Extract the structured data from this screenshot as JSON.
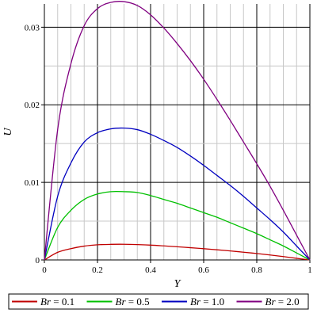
{
  "chart_data": {
    "type": "line",
    "xlabel": "Y",
    "ylabel": "U",
    "xlim": [
      0,
      1
    ],
    "ylim": [
      0,
      0.033
    ],
    "xticks": [
      0,
      0.2,
      0.4,
      0.6,
      0.8,
      1
    ],
    "xtick_labels": [
      "0",
      "0.2",
      "0.4",
      "0.6",
      "0.8",
      "1"
    ],
    "yticks": [
      0,
      0.01,
      0.02,
      0.03
    ],
    "ytick_labels": [
      "0",
      "0.01",
      "0.02",
      "0.03"
    ],
    "grid": true,
    "legend_position": "bottom",
    "x": [
      0,
      0.05,
      0.1,
      0.15,
      0.2,
      0.25,
      0.3,
      0.35,
      0.4,
      0.45,
      0.5,
      0.55,
      0.6,
      0.65,
      0.7,
      0.75,
      0.8,
      0.85,
      0.9,
      0.95,
      1.0
    ],
    "series": [
      {
        "name_var": "Br",
        "name_rest": " = 0.1",
        "color": "#c00000",
        "values": [
          0,
          0.00098,
          0.00146,
          0.00178,
          0.00195,
          0.00201,
          0.00202,
          0.00198,
          0.00191,
          0.00181,
          0.0017,
          0.00158,
          0.00145,
          0.00131,
          0.00116,
          0.001,
          0.00083,
          0.00064,
          0.00043,
          0.00021,
          0
        ]
      },
      {
        "name_var": "Br",
        "name_rest": " = 0.5",
        "color": "#00c000",
        "values": [
          0,
          0.0042,
          0.0064,
          0.0078,
          0.0085,
          0.0088,
          0.0088,
          0.0087,
          0.0083,
          0.0078,
          0.0073,
          0.0067,
          0.0061,
          0.0055,
          0.0048,
          0.0041,
          0.0034,
          0.0026,
          0.0018,
          0.0009,
          0
        ]
      },
      {
        "name_var": "Br",
        "name_rest": " = 1.0",
        "color": "#0000c0",
        "values": [
          0,
          0.0082,
          0.0125,
          0.0152,
          0.0164,
          0.0169,
          0.017,
          0.0168,
          0.0162,
          0.0154,
          0.0145,
          0.0134,
          0.0122,
          0.0109,
          0.0096,
          0.0082,
          0.0067,
          0.0052,
          0.0036,
          0.0018,
          0
        ]
      },
      {
        "name_var": "Br",
        "name_rest": " = 2.0",
        "color": "#800080",
        "values": [
          0,
          0.0168,
          0.0253,
          0.0302,
          0.0324,
          0.0332,
          0.0333,
          0.0328,
          0.0316,
          0.0299,
          0.0279,
          0.0257,
          0.0233,
          0.0207,
          0.018,
          0.0152,
          0.0124,
          0.0095,
          0.0064,
          0.0032,
          0
        ]
      }
    ]
  }
}
